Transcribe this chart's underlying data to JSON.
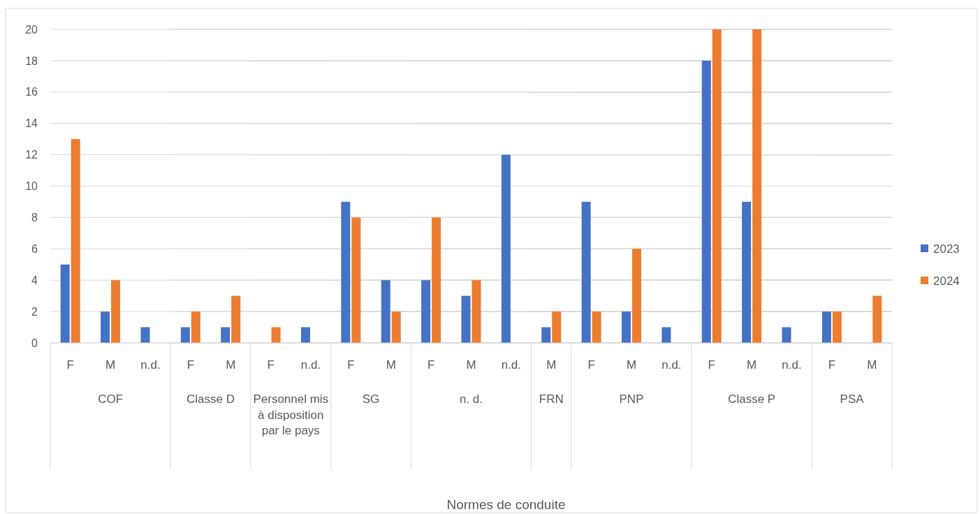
{
  "chart_data": [
    {
      "type": "bar",
      "xlabel": "COF",
      "categories": [
        "F",
        "M",
        "n.d."
      ],
      "series": [
        {
          "color": "#4472c4",
          "values": [
            5,
            2,
            1
          ]
        },
        {
          "color": "#ed7d31",
          "values": [
            13,
            4,
            null
          ]
        }
      ],
      "ylim": [
        0,
        20
      ],
      "yticks": [
        0,
        2,
        4,
        6,
        8,
        10,
        12,
        14,
        16,
        18,
        20
      ],
      "grid": "y"
    },
    {
      "type": "bar",
      "xlabel": "Classe D",
      "categories": [
        "F",
        "M"
      ],
      "series": [
        {
          "color": "#4472c4",
          "values": [
            1,
            1
          ]
        },
        {
          "color": "#ed7d31",
          "values": [
            2,
            3
          ]
        }
      ],
      "ylim": [
        0,
        20
      ],
      "yticks": [
        0,
        2,
        4,
        6,
        8,
        10,
        12,
        14,
        16,
        18,
        20
      ],
      "grid": "y",
      "tick_labels": "x"
    },
    {
      "type": "bar",
      "xlabel": "Personnel mis à disposition par le pays",
      "categories": [
        "F",
        "n.d."
      ],
      "series": [
        {
          "color": "#4472c4",
          "values": [
            null,
            1
          ]
        },
        {
          "color": "#ed7d31",
          "values": [
            1,
            null
          ]
        }
      ],
      "ylim": [
        0,
        20
      ],
      "yticks": [
        0,
        2,
        4,
        6,
        8,
        10,
        12,
        14,
        16,
        18,
        20
      ],
      "grid": "y",
      "tick_labels": "x"
    },
    {
      "type": "bar",
      "xlabel": "SG",
      "categories": [
        "F",
        "M"
      ],
      "series": [
        {
          "color": "#4472c4",
          "values": [
            9,
            4
          ]
        },
        {
          "color": "#ed7d31",
          "values": [
            8,
            2
          ]
        }
      ],
      "ylim": [
        0,
        20
      ],
      "yticks": [
        0,
        2,
        4,
        6,
        8,
        10,
        12,
        14,
        16,
        18,
        20
      ],
      "grid": "y",
      "tick_labels": "x"
    },
    {
      "type": "bar",
      "xlabel": "n. d.",
      "categories": [
        "F",
        "M",
        "n.d."
      ],
      "series": [
        {
          "color": "#4472c4",
          "values": [
            4,
            3,
            12
          ]
        },
        {
          "color": "#ed7d31",
          "values": [
            8,
            4,
            null
          ]
        }
      ],
      "ylim": [
        0,
        20
      ],
      "yticks": [
        0,
        2,
        4,
        6,
        8,
        10,
        12,
        14,
        16,
        18,
        20
      ],
      "grid": "y",
      "tick_labels": "x"
    },
    {
      "type": "bar",
      "xlabel": "FRN",
      "categories": [
        "M"
      ],
      "series": [
        {
          "color": "#4472c4",
          "values": [
            1
          ]
        },
        {
          "color": "#ed7d31",
          "values": [
            2
          ]
        }
      ],
      "ylim": [
        0,
        20
      ],
      "yticks": [
        0,
        2,
        4,
        6,
        8,
        10,
        12,
        14,
        16,
        18,
        20
      ],
      "grid": "y",
      "tick_labels": "x"
    },
    {
      "type": "bar",
      "xlabel": "PNP",
      "categories": [
        "F",
        "M",
        "n.d."
      ],
      "series": [
        {
          "color": "#4472c4",
          "values": [
            9,
            2,
            1
          ]
        },
        {
          "color": "#ed7d31",
          "values": [
            2,
            6,
            null
          ]
        }
      ],
      "ylim": [
        0,
        20
      ],
      "yticks": [
        0,
        2,
        4,
        6,
        8,
        10,
        12,
        14,
        16,
        18,
        20
      ],
      "grid": "y",
      "tick_labels": "x"
    },
    {
      "type": "bar",
      "xlabel": "Classe P",
      "categories": [
        "F",
        "M",
        "n.d."
      ],
      "series": [
        {
          "color": "#4472c4",
          "values": [
            18,
            9,
            1
          ]
        },
        {
          "color": "#ed7d31",
          "values": [
            20,
            20,
            null
          ]
        }
      ],
      "ylim": [
        0,
        20
      ],
      "yticks": [
        0,
        2,
        4,
        6,
        8,
        10,
        12,
        14,
        16,
        18,
        20
      ],
      "grid": "y",
      "tick_labels": "x"
    },
    {
      "type": "bar",
      "xlabel": "PSA",
      "categories": [
        "F",
        "M"
      ],
      "series": [
        {
          "name": "2023",
          "color": "#4472c4",
          "values": [
            2,
            null
          ]
        },
        {
          "name": "2024",
          "color": "#ed7d31",
          "values": [
            2,
            3
          ]
        }
      ],
      "ylim": [
        0,
        20
      ],
      "yticks": [
        0,
        2,
        4,
        6,
        8,
        10,
        12,
        14,
        16,
        18,
        20
      ],
      "grid": "y",
      "tick_labels": "x",
      "legend": "right",
      "annotations": [
        "Normes de conduite"
      ]
    }
  ]
}
